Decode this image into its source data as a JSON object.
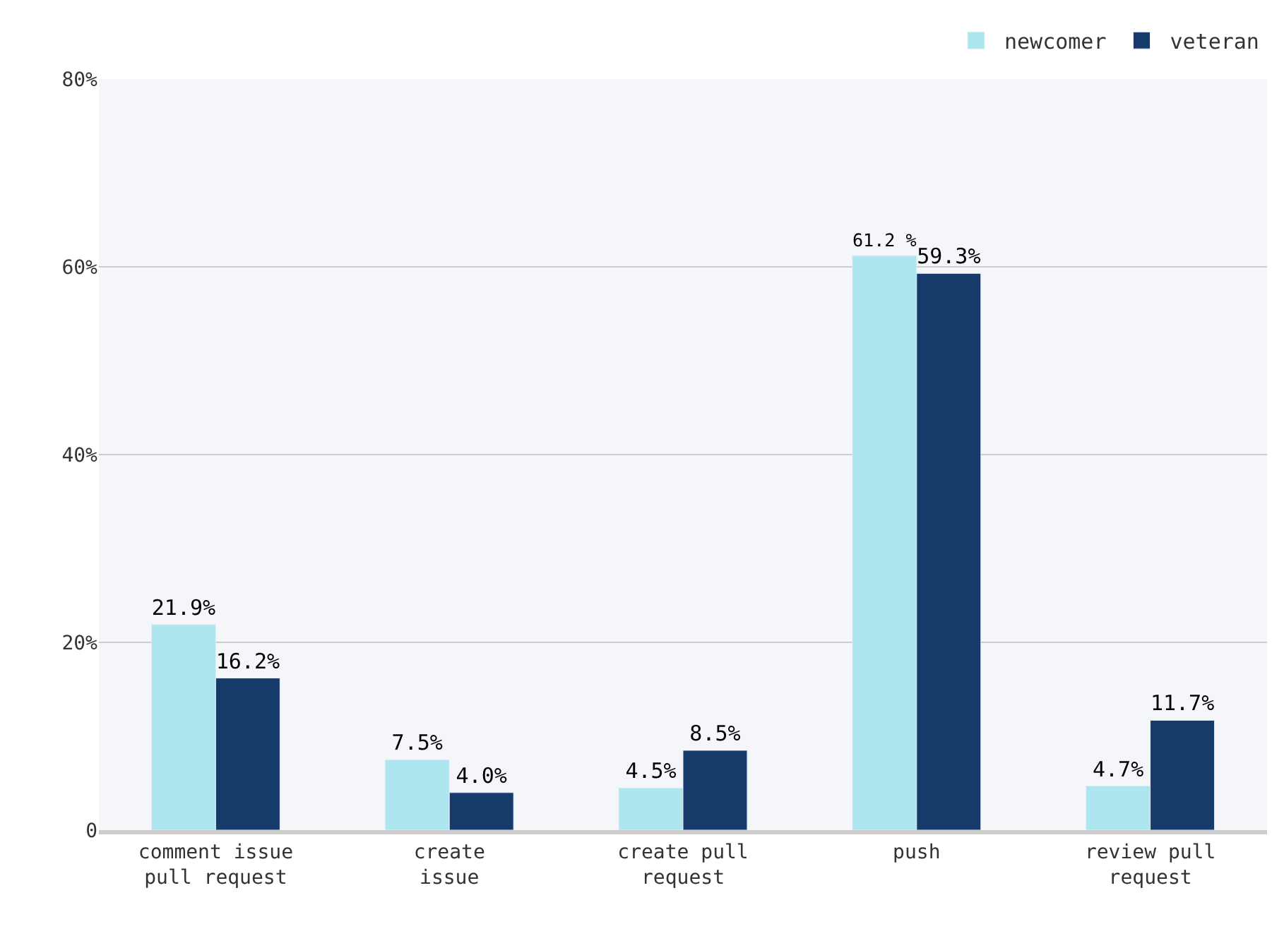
{
  "chart_data": {
    "type": "bar",
    "categories": [
      "comment issue\npull request",
      "create\nissue",
      "create pull\nrequest",
      "push",
      "review pull\nrequest"
    ],
    "series": [
      {
        "name": "newcomer",
        "color": "#aee6f0",
        "values": [
          21.9,
          7.5,
          4.5,
          61.2,
          4.7
        ],
        "value_labels": [
          "21.9%",
          "7.5%",
          "4.5%",
          "61.2 %",
          "4.7%"
        ]
      },
      {
        "name": "veteran",
        "color": "#163a69",
        "values": [
          16.2,
          4.0,
          8.5,
          59.3,
          11.7
        ],
        "value_labels": [
          "16.2%",
          "4.0%",
          "8.5%",
          "59.3%",
          "11.7%"
        ]
      }
    ],
    "ylim": [
      0,
      80
    ],
    "yticks": [
      {
        "value": 0,
        "label": "0"
      },
      {
        "value": 20,
        "label": "20%"
      },
      {
        "value": 40,
        "label": "40%"
      },
      {
        "value": 60,
        "label": "60%"
      },
      {
        "value": 80,
        "label": "80%"
      }
    ],
    "grid": "y",
    "legend": "top right"
  }
}
